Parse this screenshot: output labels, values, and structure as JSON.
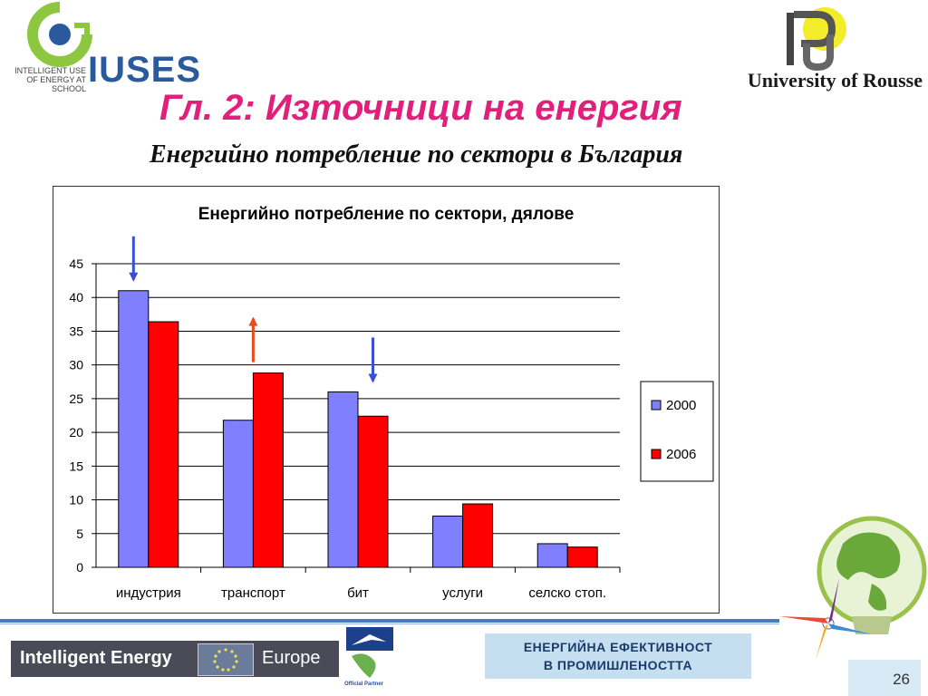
{
  "header": {
    "logo_word": "IUSES",
    "logo_tagline": "INTELLIGENT USE OF ENERGY AT SCHOOL",
    "university_name": "University of Rousse"
  },
  "slide": {
    "title": "Гл. 2: Източници на енергия",
    "subtitle": "Енергийно потребление по сектори в България",
    "page_number": "26"
  },
  "colors": {
    "series_2000": "#8080ff",
    "series_2006": "#ff0000",
    "arrow_down": "#3a4fd8",
    "arrow_up": "#e84a1a"
  },
  "chart_data": {
    "type": "bar",
    "title": "Енергийно потребление по сектори, дялове",
    "xlabel": "",
    "ylabel": "",
    "ylim": [
      0,
      45
    ],
    "yticks": [
      "0",
      "5",
      "10",
      "15",
      "20",
      "25",
      "30",
      "35",
      "40",
      "45"
    ],
    "categories": [
      "индустрия",
      "транспорт",
      "бит",
      "услуги",
      "селско стоп."
    ],
    "series": [
      {
        "name": "2000",
        "values": [
          41,
          21.8,
          26,
          7.6,
          3.5
        ]
      },
      {
        "name": "2006",
        "values": [
          36.4,
          28.8,
          22.4,
          9.4,
          3.0
        ]
      }
    ],
    "trend_arrows": [
      "down",
      "up",
      "down",
      null,
      null
    ],
    "grid": true,
    "legend": "right"
  },
  "footer": {
    "program_left": "Intelligent Energy",
    "program_right": "Europe",
    "partner_label": "Official Partner",
    "topic_line1": "ЕНЕРГИЙНА ЕФЕКТИВНОСТ",
    "topic_line2": "В ПРОМИШЛЕНОСТТА"
  }
}
